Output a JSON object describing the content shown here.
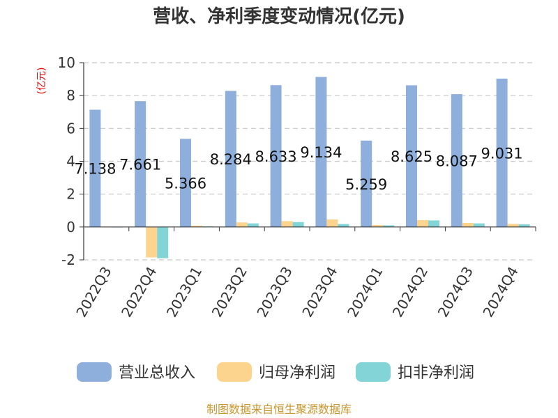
{
  "chart_data": {
    "type": "bar",
    "title": "营收、净利季度变动情况(亿元)",
    "ylabel": "(亿元)",
    "ylim": [
      -2,
      10
    ],
    "yticks": [
      -2,
      0,
      2,
      4,
      6,
      8,
      10
    ],
    "grid": true,
    "legend_position": "bottom",
    "categories": [
      "2022Q3",
      "2022Q4",
      "2023Q1",
      "2023Q2",
      "2023Q3",
      "2023Q4",
      "2024Q1",
      "2024Q2",
      "2024Q3",
      "2024Q4"
    ],
    "series": [
      {
        "name": "营业总收入",
        "color": "#8eaedb",
        "values": [
          7.138,
          7.661,
          5.366,
          8.284,
          8.633,
          9.134,
          5.259,
          8.625,
          8.087,
          9.031
        ],
        "labels": [
          "7.138",
          "7.661",
          "5.366",
          "8.284",
          "8.633",
          "9.134",
          "5.259",
          "8.625",
          "8.087",
          "9.031"
        ]
      },
      {
        "name": "归母净利润",
        "color": "#fdd48e",
        "values": [
          0.02,
          -1.85,
          0.08,
          0.28,
          0.36,
          0.46,
          0.12,
          0.42,
          0.25,
          0.19
        ]
      },
      {
        "name": "扣非净利润",
        "color": "#83d4d6",
        "values": [
          0.01,
          -1.9,
          0.04,
          0.22,
          0.3,
          0.18,
          0.1,
          0.4,
          0.22,
          0.16
        ]
      }
    ]
  },
  "source": "制图数据来自恒生聚源数据库"
}
